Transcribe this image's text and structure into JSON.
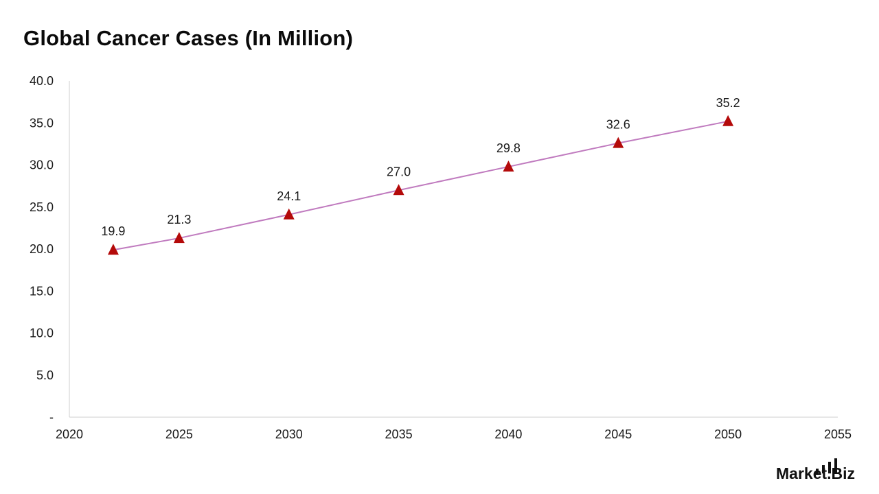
{
  "chart_data": {
    "type": "line",
    "title": "Global Cancer Cases (In Million)",
    "x": [
      2022,
      2025,
      2030,
      2035,
      2040,
      2045,
      2050
    ],
    "y": [
      19.9,
      21.3,
      24.1,
      27.0,
      29.8,
      32.6,
      35.2
    ],
    "data_labels": [
      "19.9",
      "21.3",
      "24.1",
      "27.0",
      "29.8",
      "32.6",
      "35.2"
    ],
    "xlim": [
      2020,
      2055
    ],
    "ylim": [
      0,
      40
    ],
    "x_ticks": [
      2020,
      2025,
      2030,
      2035,
      2040,
      2045,
      2050,
      2055
    ],
    "x_tick_labels": [
      "2020",
      "2025",
      "2030",
      "2035",
      "2040",
      "2045",
      "2050",
      "2055"
    ],
    "y_ticks": [
      0,
      5,
      10,
      15,
      20,
      25,
      30,
      35,
      40
    ],
    "y_tick_labels": [
      "-",
      "5.0",
      "10.0",
      "15.0",
      "20.0",
      "25.0",
      "30.0",
      "35.0",
      "40.0"
    ],
    "grid": false,
    "legend": "none",
    "marker": "triangle",
    "line_color": "#c07bbf",
    "marker_color": "#b40a0a"
  },
  "branding": {
    "logo_text": "Market.Biz",
    "logo_icon": "bar-signal-icon"
  }
}
